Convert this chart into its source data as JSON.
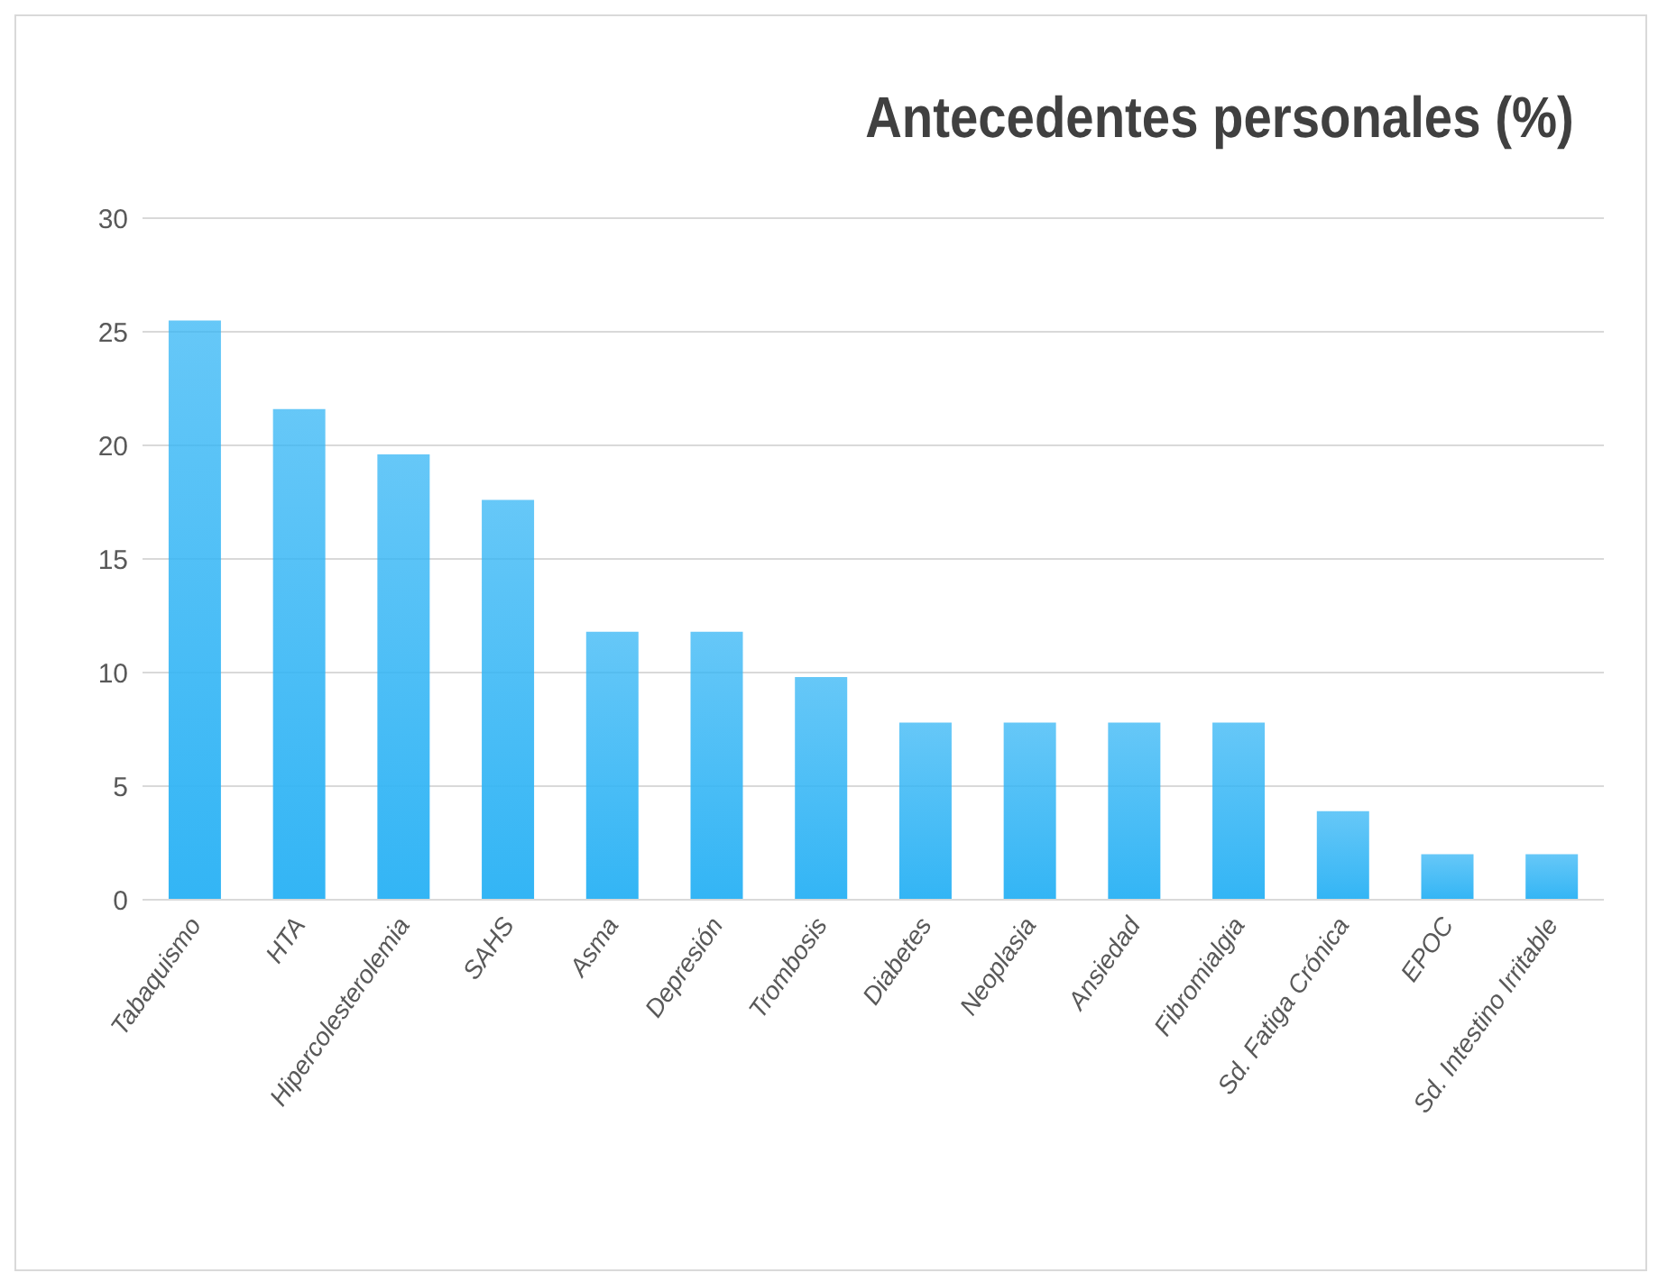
{
  "chart_data": {
    "type": "bar",
    "title": "Antecedentes personales (%)",
    "categories": [
      "Tabaquismo",
      "HTA",
      "Hipercolesterolemia",
      "SAHS",
      "Asma",
      "Depresión",
      "Trombosis",
      "Diabetes",
      "Neoplasia",
      "Ansiedad",
      "Fibromialgia",
      "Sd. Fatiga Crónica",
      "EPOC",
      "Sd. Intestino Irritable"
    ],
    "values": [
      25.5,
      21.6,
      19.6,
      17.6,
      11.8,
      11.8,
      9.8,
      7.8,
      7.8,
      7.8,
      7.8,
      3.9,
      2.0,
      2.0
    ],
    "color": "#33b5f5",
    "ylim": [
      0,
      30
    ],
    "yticks": [
      0,
      5,
      10,
      15,
      20,
      25,
      30
    ],
    "grid": "y"
  }
}
